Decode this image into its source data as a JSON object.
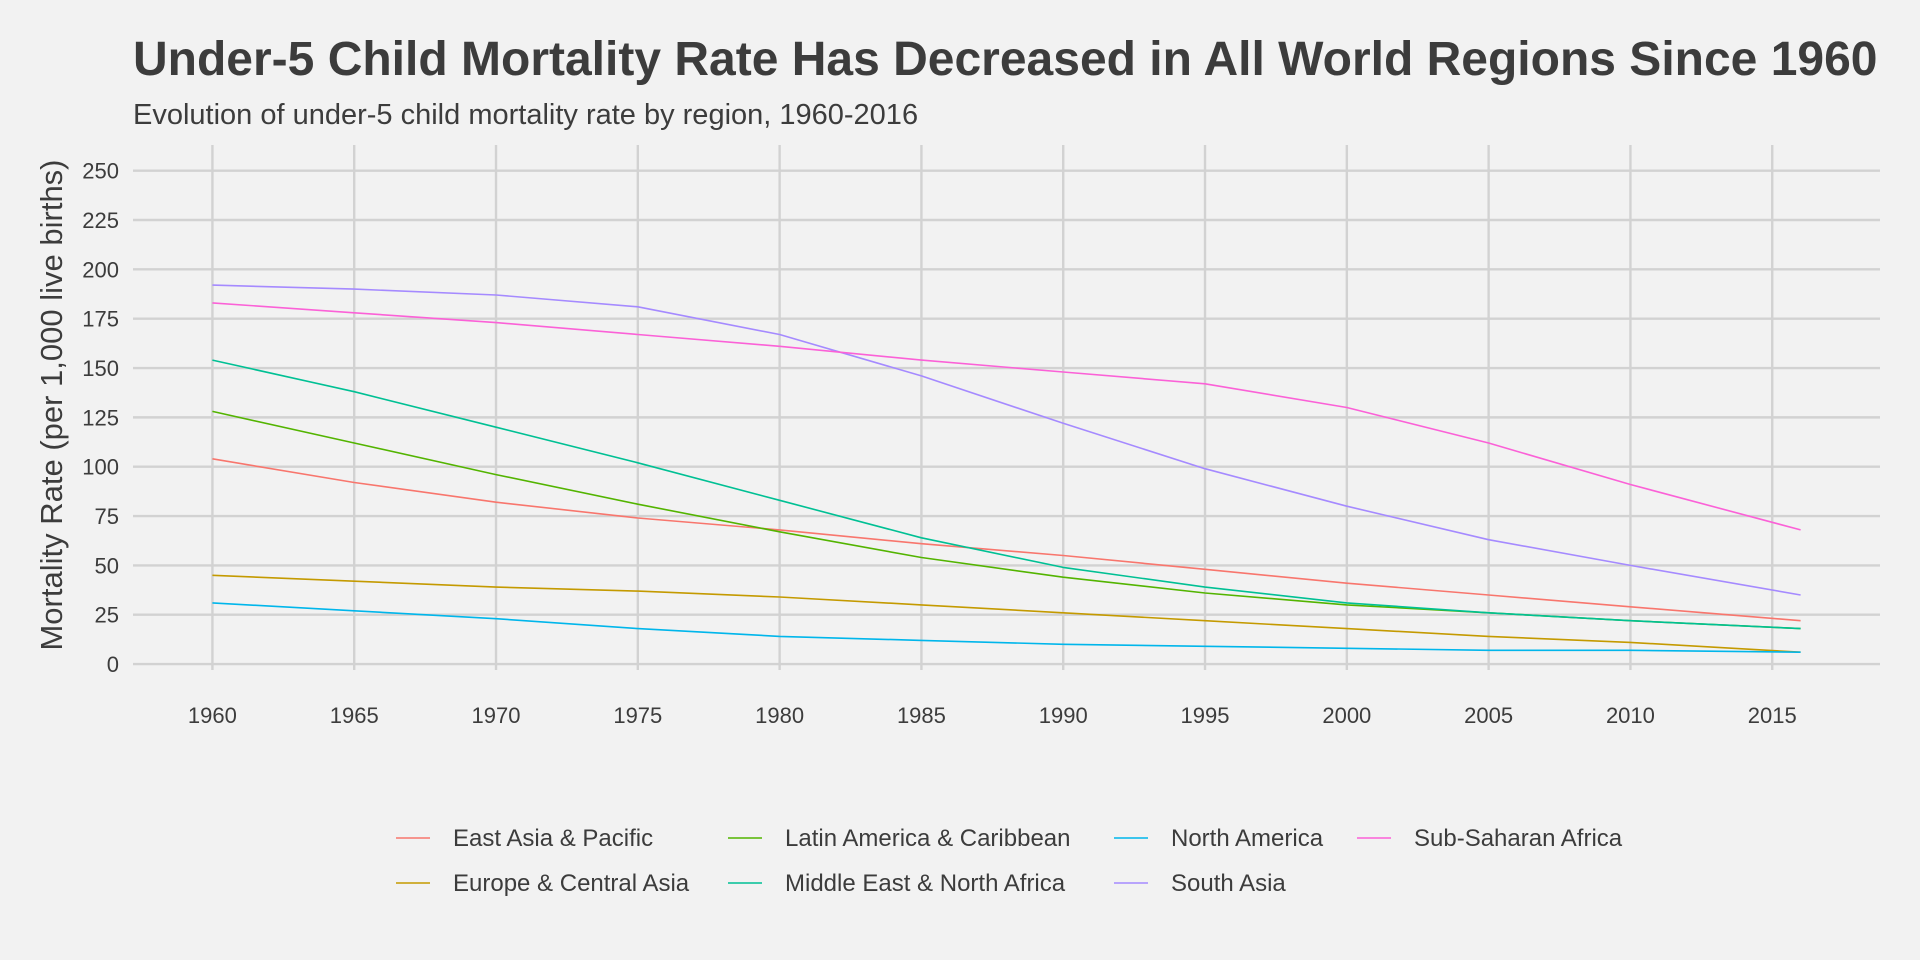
{
  "chart_data": {
    "type": "line",
    "title": "Under-5 Child Mortality Rate Has Decreased in All World Regions Since 1960",
    "subtitle": "Evolution of under-5 child mortality rate by region, 1960-2016",
    "xlabel": "",
    "ylabel": "Mortality Rate (per 1,000 live births)",
    "xlim": [
      1957.2,
      2018.8
    ],
    "ylim": [
      -3,
      263
    ],
    "x_ticks": [
      "1960",
      "1965",
      "1970",
      "1975",
      "1980",
      "1985",
      "1990",
      "1995",
      "2000",
      "2005",
      "2010",
      "2015"
    ],
    "y_ticks": [
      "0",
      "25",
      "50",
      "75",
      "100",
      "125",
      "150",
      "175",
      "200",
      "225",
      "250"
    ],
    "grid": true,
    "legend_position": "bottom",
    "x": [
      1960,
      1965,
      1970,
      1975,
      1980,
      1985,
      1990,
      1995,
      2000,
      2005,
      2010,
      2016
    ],
    "series": [
      {
        "name": "East Asia & Pacific",
        "color": "#F8766D",
        "values": [
          104,
          92,
          82,
          74,
          68,
          61,
          55,
          48,
          41,
          35,
          29,
          22
        ]
      },
      {
        "name": "Europe & Central Asia",
        "color": "#C49A00",
        "values": [
          45,
          42,
          39,
          37,
          34,
          30,
          26,
          22,
          18,
          14,
          11,
          6
        ]
      },
      {
        "name": "Latin America & Caribbean",
        "color": "#53B400",
        "values": [
          128,
          112,
          96,
          81,
          67,
          54,
          44,
          36,
          30,
          26,
          22,
          18
        ]
      },
      {
        "name": "Middle East & North Africa",
        "color": "#00C094",
        "values": [
          154,
          138,
          120,
          102,
          83,
          64,
          49,
          39,
          31,
          26,
          22,
          18
        ]
      },
      {
        "name": "North America",
        "color": "#00B6EB",
        "values": [
          31,
          27,
          23,
          18,
          14,
          12,
          10,
          9,
          8,
          7,
          7,
          6
        ]
      },
      {
        "name": "South Asia",
        "color": "#A58AFF",
        "values": [
          192,
          190,
          187,
          181,
          167,
          146,
          122,
          99,
          80,
          63,
          50,
          35
        ]
      },
      {
        "name": "Sub-Saharan Africa",
        "color": "#FB61D7",
        "values": [
          183,
          178,
          173,
          167,
          161,
          154,
          148,
          142,
          130,
          112,
          91,
          68
        ]
      }
    ]
  }
}
